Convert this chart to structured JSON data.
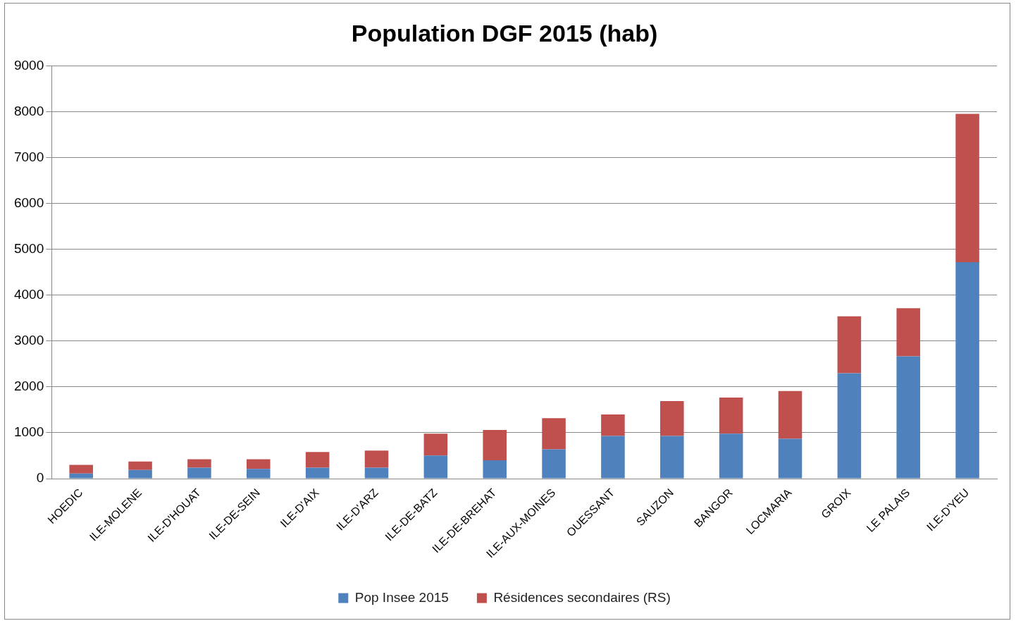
{
  "chart_data": {
    "type": "bar",
    "title": "Population DGF 2015 (hab)",
    "stacked": true,
    "categories": [
      "HOEDIC",
      "ILE-MOLENE",
      "ILE-D'HOUAT",
      "ILE-DE-SEIN",
      "ILE-D'AIX",
      "ILE-D'ARZ",
      "ILE-DE-BATZ",
      "ILE-DE-BREHAT",
      "ILE-AUX-MOINES",
      "OUESSANT",
      "SAUZON",
      "BANGOR",
      "LOCMARIA",
      "GROIX",
      "LE PALAIS",
      "ILE-D'YEU"
    ],
    "series": [
      {
        "name": "Pop Insee 2015",
        "color": "#4f81bd",
        "values": [
          110,
          190,
          240,
          210,
          240,
          240,
          505,
          400,
          640,
          930,
          930,
          980,
          870,
          2300,
          2670,
          4720
        ]
      },
      {
        "name": "Résidences secondaires (RS)",
        "color": "#c0504d",
        "values": [
          190,
          185,
          185,
          215,
          340,
          370,
          475,
          660,
          680,
          470,
          760,
          790,
          1040,
          1240,
          1050,
          3240
        ]
      }
    ],
    "ylim": [
      0,
      9000
    ],
    "yticks": [
      0,
      1000,
      2000,
      3000,
      4000,
      5000,
      6000,
      7000,
      8000,
      9000
    ],
    "grid": "y",
    "legend": "bottom"
  }
}
